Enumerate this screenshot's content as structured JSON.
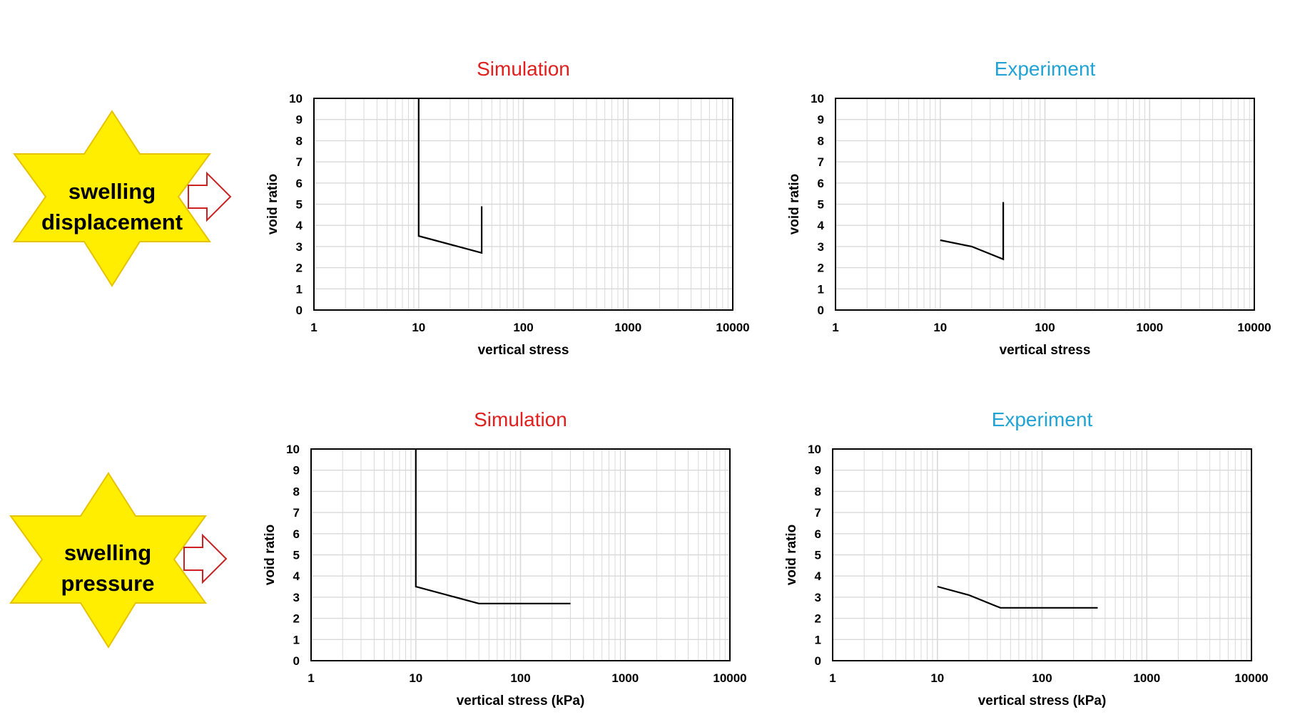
{
  "colors": {
    "simulation_title": "#e0201e",
    "experiment_title": "#22a3d3",
    "star_fill": "#ffee00",
    "star_stroke": "#e6c200",
    "arrow_stroke": "#cc2222",
    "grid": "#d9d9d9",
    "series": "#000000"
  },
  "row_labels": [
    {
      "line1": "swelling",
      "line2": "displacement",
      "icon": "star-icon"
    },
    {
      "line1": "swelling",
      "line2": "pressure",
      "icon": "star-icon"
    }
  ],
  "arrow_icon": "right-arrow-icon",
  "chart_data": [
    {
      "type": "line",
      "title": "Simulation",
      "title_color": "#e0201e",
      "xlabel": "vertical stress",
      "ylabel": "void ratio",
      "xscale": "log",
      "xlim": [
        1,
        10000
      ],
      "ylim": [
        0,
        10
      ],
      "xticks": [
        "1",
        "10",
        "100",
        "1000",
        "10000"
      ],
      "yticks": [
        "0",
        "1",
        "2",
        "3",
        "4",
        "5",
        "6",
        "7",
        "8",
        "9",
        "10"
      ],
      "grid": true,
      "series": [
        {
          "x": [
            10,
            10,
            40,
            40
          ],
          "y": [
            10,
            3.5,
            2.7,
            4.9
          ]
        }
      ]
    },
    {
      "type": "line",
      "title": "Experiment",
      "title_color": "#22a3d3",
      "xlabel": "vertical stress",
      "ylabel": "void ratio",
      "xscale": "log",
      "xlim": [
        1,
        10000
      ],
      "ylim": [
        0,
        10
      ],
      "xticks": [
        "1",
        "10",
        "100",
        "1000",
        "10000"
      ],
      "yticks": [
        "0",
        "1",
        "2",
        "3",
        "4",
        "5",
        "6",
        "7",
        "8",
        "9",
        "10"
      ],
      "grid": true,
      "series": [
        {
          "x": [
            10,
            20,
            40,
            40
          ],
          "y": [
            3.3,
            3.0,
            2.4,
            5.1
          ]
        }
      ]
    },
    {
      "type": "line",
      "title": "Simulation",
      "title_color": "#e0201e",
      "xlabel": "vertical stress (kPa)",
      "ylabel": "void ratio",
      "xscale": "log",
      "xlim": [
        1,
        10000
      ],
      "ylim": [
        0,
        10
      ],
      "xticks": [
        "1",
        "10",
        "100",
        "1000",
        "10000"
      ],
      "yticks": [
        "0",
        "1",
        "2",
        "3",
        "4",
        "5",
        "6",
        "7",
        "8",
        "9",
        "10"
      ],
      "grid": true,
      "series": [
        {
          "x": [
            10,
            10,
            40,
            300
          ],
          "y": [
            10,
            3.5,
            2.7,
            2.7
          ]
        }
      ]
    },
    {
      "type": "line",
      "title": "Experiment",
      "title_color": "#22a3d3",
      "xlabel": "vertical stress (kPa)",
      "ylabel": "void ratio",
      "xscale": "log",
      "xlim": [
        1,
        10000
      ],
      "ylim": [
        0,
        10
      ],
      "xticks": [
        "1",
        "10",
        "100",
        "1000",
        "10000"
      ],
      "yticks": [
        "0",
        "1",
        "2",
        "3",
        "4",
        "5",
        "6",
        "7",
        "8",
        "9",
        "10"
      ],
      "grid": true,
      "series": [
        {
          "x": [
            10,
            20,
            40,
            340
          ],
          "y": [
            3.5,
            3.1,
            2.5,
            2.5
          ]
        }
      ]
    }
  ]
}
